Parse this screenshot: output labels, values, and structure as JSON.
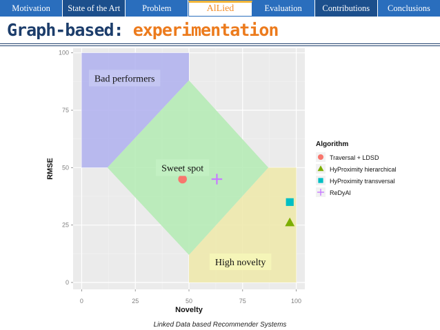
{
  "nav": {
    "tabs": [
      {
        "label": "Motivation"
      },
      {
        "label": "State of the Art"
      },
      {
        "label": "Problem"
      },
      {
        "label": "AlLied"
      },
      {
        "label": "Evaluation"
      },
      {
        "label": "Contributions"
      },
      {
        "label": "Conclusions"
      }
    ]
  },
  "title": {
    "part1": "Graph-based:",
    "part2": "experimentation"
  },
  "footer": "Linked Data based Recommender Systems",
  "colors": {
    "nav": "#2a6ebd",
    "title_dark": "#1c3d6b",
    "title_accent": "#ec7b1d",
    "bad_region": "#b3b4ee",
    "sweet_region": "#b6ebb6",
    "novelty_region": "#eee9ad",
    "plot_bg": "#ebebeb",
    "label_bg": "#c2f0c2",
    "novelty_label_bg": "#f5f5b8",
    "traversal": "#f8766d",
    "hyh": "#7cae00",
    "hyt": "#00bfc4",
    "redyal": "#c77cff"
  },
  "chart_data": {
    "type": "scatter",
    "xlabel": "Novelty",
    "ylabel": "RMSE",
    "xlim": [
      -4,
      104
    ],
    "ylim": [
      -3,
      102
    ],
    "xticks": [
      0,
      25,
      50,
      75,
      100
    ],
    "yticks": [
      0,
      25,
      50,
      75,
      100
    ],
    "legend": {
      "title": "Algorithm",
      "position": "right"
    },
    "series": [
      {
        "name": "Traversal + LDSD",
        "marker": "circle",
        "color": "#f8766d",
        "x": 47,
        "y": 45
      },
      {
        "name": "HyProximity hierarchical",
        "marker": "triangle",
        "color": "#7cae00",
        "x": 97,
        "y": 26
      },
      {
        "name": "HyProximity transversal",
        "marker": "square",
        "color": "#00bfc4",
        "x": 97,
        "y": 35
      },
      {
        "name": "ReDyAl",
        "marker": "plus",
        "color": "#c77cff",
        "x": 63,
        "y": 45
      }
    ],
    "regions": [
      {
        "name": "bad-performers-region",
        "color": "#b3b4ee",
        "points": [
          [
            0,
            100
          ],
          [
            50,
            100
          ],
          [
            50,
            88
          ],
          [
            12,
            50
          ],
          [
            0,
            50
          ]
        ]
      },
      {
        "name": "high-novelty-region",
        "color": "#eee9ad",
        "points": [
          [
            87,
            50
          ],
          [
            100,
            50
          ],
          [
            100,
            0
          ],
          [
            50,
            0
          ],
          [
            50,
            12
          ]
        ]
      },
      {
        "name": "sweet-spot-region",
        "color": "#b6ebb6",
        "points": [
          [
            50,
            88
          ],
          [
            87,
            50
          ],
          [
            50,
            12
          ],
          [
            12,
            50
          ]
        ]
      }
    ],
    "annotations": [
      {
        "name": "bad-performers-label",
        "text": "Bad performers",
        "x": 20,
        "y": 89
      },
      {
        "name": "sweet-spot-label",
        "text": "Sweet spot",
        "x": 47,
        "y": 50
      },
      {
        "name": "high-novelty-label",
        "text": "High novelty",
        "x": 74,
        "y": 9
      }
    ]
  }
}
